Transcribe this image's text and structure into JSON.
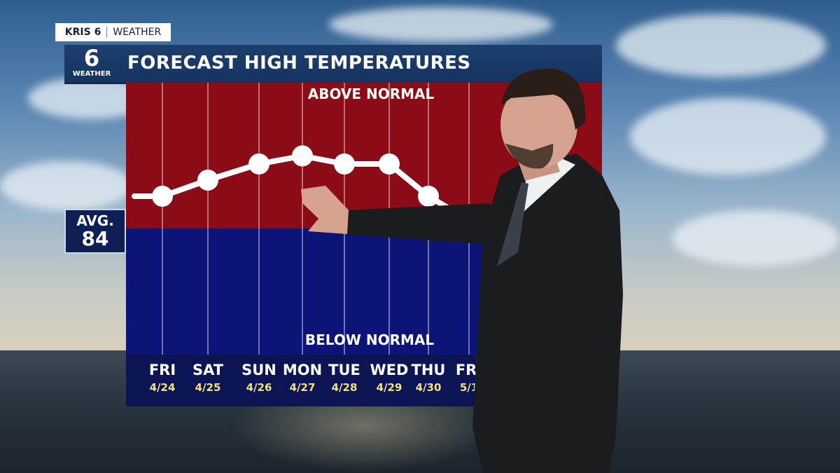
{
  "brand": {
    "station": "KRIS 6",
    "section": "WEATHER"
  },
  "logo": {
    "number": "6",
    "label": "WEATHER"
  },
  "title": "FORECAST HIGH TEMPERATURES",
  "average": {
    "label": "AVG.",
    "value": "84"
  },
  "chart_data": {
    "type": "line",
    "zones": {
      "above": "ABOVE NORMAL",
      "below": "BELOW NORMAL"
    },
    "categories": [
      "FRI",
      "SAT",
      "SUN",
      "MON",
      "TUE",
      "WED",
      "THU",
      "FRI"
    ],
    "dates": [
      "4/24",
      "4/25",
      "4/26",
      "4/27",
      "4/28",
      "4/29",
      "4/30",
      "5/1"
    ],
    "normal": 84,
    "values": [
      88,
      90,
      92,
      93,
      92,
      92,
      88,
      85
    ],
    "colors": {
      "above": "#8b0b16",
      "below": "#0d1478",
      "line": "#ffffff"
    }
  }
}
